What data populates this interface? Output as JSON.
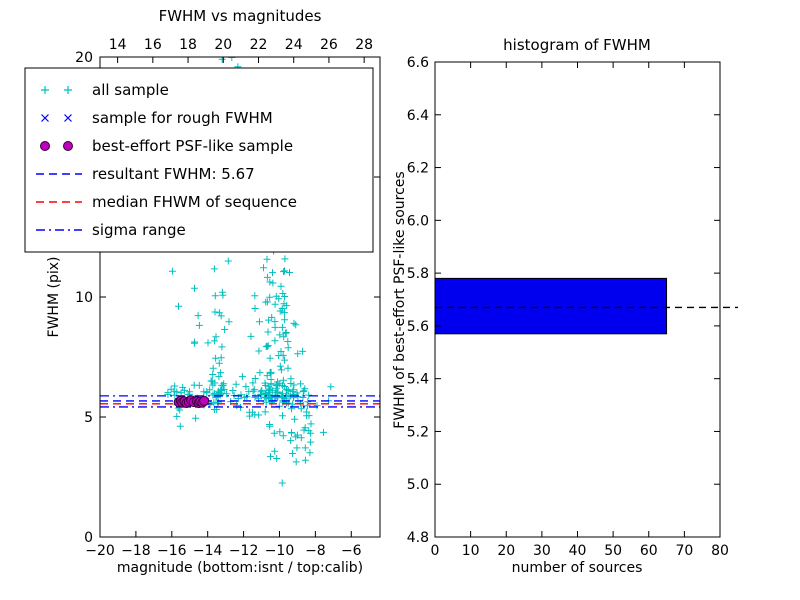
{
  "chart_data": [
    {
      "type": "scatter",
      "title": "FWHM vs magnitudes",
      "xlabel": "magnitude (bottom:isnt / top:calib)",
      "ylabel": "FWHM (pix)",
      "x_axis_bottom": {
        "label": "isnt magnitude",
        "range": [
          -20,
          -4.4
        ],
        "ticks": [
          -20,
          -18,
          -16,
          -14,
          -12,
          -10,
          -8,
          -6
        ]
      },
      "x_axis_top": {
        "label": "calib magnitude",
        "range": [
          13.0,
          28.9
        ],
        "ticks": [
          14,
          16,
          18,
          20,
          22,
          24,
          26,
          28
        ]
      },
      "y_axis": {
        "range": [
          0,
          20
        ],
        "ticks": [
          0,
          5,
          10,
          15,
          20
        ]
      },
      "series": [
        {
          "name": "all sample",
          "marker": "plus",
          "color": "#00bfbf",
          "clusters": [
            {
              "kind": "band",
              "mag_range": [
                -16.3,
                -8.6
              ],
              "fwhm_mean": 5.8,
              "fwhm_sigma": 0.4,
              "n": 105
            },
            {
              "kind": "column",
              "mag_mean": -13.4,
              "mag_sigma": 0.4,
              "fwhm_range": [
                6,
                20
              ],
              "power": 1.7,
              "n": 48
            },
            {
              "kind": "column",
              "mag_mean": -10.2,
              "mag_sigma": 0.6,
              "fwhm_range": [
                5.8,
                16
              ],
              "power": 2.4,
              "n": 150
            },
            {
              "kind": "uniform",
              "mag_range": [
                -13.2,
                -10.8
              ],
              "fwhm_range": [
                12,
                20
              ],
              "n": 18
            },
            {
              "kind": "uniform",
              "mag_range": [
                -10.6,
                -8.1
              ],
              "fwhm_range": [
                3.1,
                5.3
              ],
              "n": 26
            },
            {
              "kind": "uniform",
              "mag_range": [
                -8.8,
                -7.1
              ],
              "fwhm_range": [
                4.3,
                6.3
              ],
              "n": 13
            },
            {
              "kind": "uniform",
              "mag_range": [
                -16.2,
                -14.2
              ],
              "fwhm_range": [
                6.2,
                11.5
              ],
              "n": 8
            }
          ],
          "extra_points": [
            [
              -9.85,
              2.25
            ]
          ]
        },
        {
          "name": "sample for rough FWHM",
          "marker": "x",
          "color": "#0000ff",
          "points": [
            [
              -15.58,
              5.66
            ],
            [
              -15.35,
              5.61
            ],
            [
              -15.12,
              5.66
            ],
            [
              -14.95,
              5.6
            ],
            [
              -14.7,
              5.64
            ],
            [
              -14.46,
              5.61
            ],
            [
              -14.25,
              5.63
            ],
            [
              -14.1,
              5.65
            ]
          ]
        },
        {
          "name": "best-effort PSF-like sample",
          "marker": "circle",
          "color": "#bf00bf",
          "edge": "#330033",
          "points": [
            [
              -15.62,
              5.62
            ],
            [
              -15.5,
              5.68
            ],
            [
              -15.42,
              5.6
            ],
            [
              -15.3,
              5.65
            ],
            [
              -15.18,
              5.58
            ],
            [
              -15.05,
              5.63
            ],
            [
              -14.92,
              5.7
            ],
            [
              -14.78,
              5.62
            ],
            [
              -14.6,
              5.66
            ],
            [
              -14.5,
              5.58
            ],
            [
              -14.42,
              5.64
            ],
            [
              -14.3,
              5.6
            ],
            [
              -14.2,
              5.67
            ]
          ]
        }
      ],
      "hlines": [
        {
          "name": "resultant FWHM: 5.67",
          "y": 5.67,
          "color": "#0000ff",
          "style": "dashed"
        },
        {
          "name": "median FHWM of sequence",
          "y": 5.55,
          "color": "#ff0000",
          "style": "dashed"
        },
        {
          "name": "sigma range lower",
          "y": 5.42,
          "color": "#0000ff",
          "style": "dashdot"
        },
        {
          "name": "sigma range upper",
          "y": 5.88,
          "color": "#0000ff",
          "style": "dashdot"
        }
      ],
      "legend": {
        "position": "upper left",
        "entries": [
          {
            "label": "all sample",
            "marker": "plus",
            "color": "#00bfbf"
          },
          {
            "label": "sample for rough FWHM",
            "marker": "x",
            "color": "#0000ff"
          },
          {
            "label": "best-effort PSF-like sample",
            "marker": "circle",
            "color": "#bf00bf"
          },
          {
            "label": "resultant FWHM: 5.67",
            "marker": "dashed-line",
            "color": "#0000ff"
          },
          {
            "label": "median FHWM of sequence",
            "marker": "dashed-line",
            "color": "#ff0000"
          },
          {
            "label": "sigma range",
            "marker": "dashdot-line",
            "color": "#0000ff"
          }
        ]
      }
    },
    {
      "type": "bar",
      "orientation": "horizontal",
      "title": "histogram of FWHM",
      "xlabel": "number of sources",
      "ylabel": "FWHM of best-effort PSF-like sources",
      "x_axis": {
        "range": [
          0,
          80
        ],
        "ticks": [
          0,
          10,
          20,
          30,
          40,
          50,
          60,
          70,
          80
        ]
      },
      "y_axis": {
        "range": [
          4.8,
          6.6
        ],
        "ticks": [
          4.8,
          5.0,
          5.2,
          5.4,
          5.6,
          5.8,
          6.0,
          6.2,
          6.4,
          6.6
        ]
      },
      "bars": [
        {
          "y_from": 5.57,
          "y_to": 5.78,
          "count": 65
        }
      ],
      "bar_color": "#0000ee",
      "bar_edge": "#000000",
      "hline": {
        "y": 5.67,
        "style": "dashed",
        "color": "#000000"
      }
    }
  ]
}
